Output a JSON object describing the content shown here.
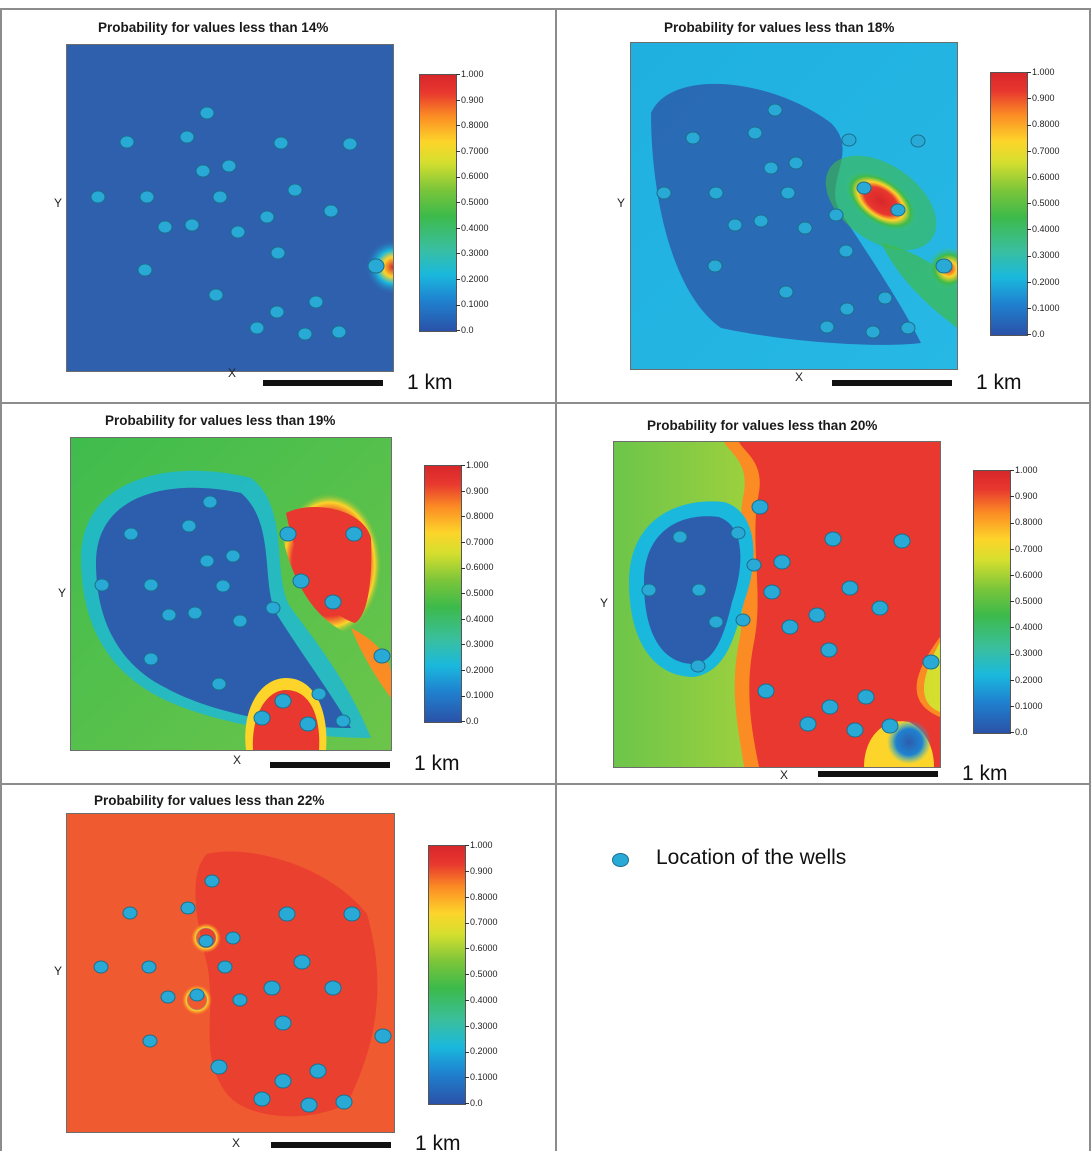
{
  "legend": {
    "label": "Location of the wells",
    "marker_color": "#29a9d6"
  },
  "colorbar": {
    "ticks": [
      "1.000",
      "0.900",
      "0.8000",
      "0.7000",
      "0.6000",
      "0.5000",
      "0.4000",
      "0.3000",
      "0.2000",
      "0.1000",
      "0.0"
    ],
    "colors": [
      "#2a52a8",
      "#1ab8dd",
      "#3dba4a",
      "#fdd42a",
      "#d8262a"
    ]
  },
  "chart_data": [
    {
      "type": "heatmap",
      "title": "Probability for values less than 14%",
      "xlabel": "X",
      "ylabel": "Y",
      "scale_label": "1 km",
      "value_range": [
        0,
        1
      ],
      "background_value": 0.05
    },
    {
      "type": "heatmap",
      "title": "Probability for values less than 18%",
      "xlabel": "X",
      "ylabel": "Y",
      "scale_label": "1 km",
      "value_range": [
        0,
        1
      ],
      "background_value": 0.2
    },
    {
      "type": "heatmap",
      "title": "Probability for values less than 19%",
      "xlabel": "X",
      "ylabel": "Y",
      "scale_label": "1 km",
      "value_range": [
        0,
        1
      ],
      "background_value": 0.45
    },
    {
      "type": "heatmap",
      "title": "Probability for values less than 20%",
      "xlabel": "X",
      "ylabel": "Y",
      "scale_label": "1 km",
      "value_range": [
        0,
        1
      ],
      "background_value": 0.6
    },
    {
      "type": "heatmap",
      "title": "Probability for values less than 22%",
      "xlabel": "X",
      "ylabel": "Y",
      "scale_label": "1 km",
      "value_range": [
        0,
        1
      ],
      "background_value": 0.93
    }
  ]
}
